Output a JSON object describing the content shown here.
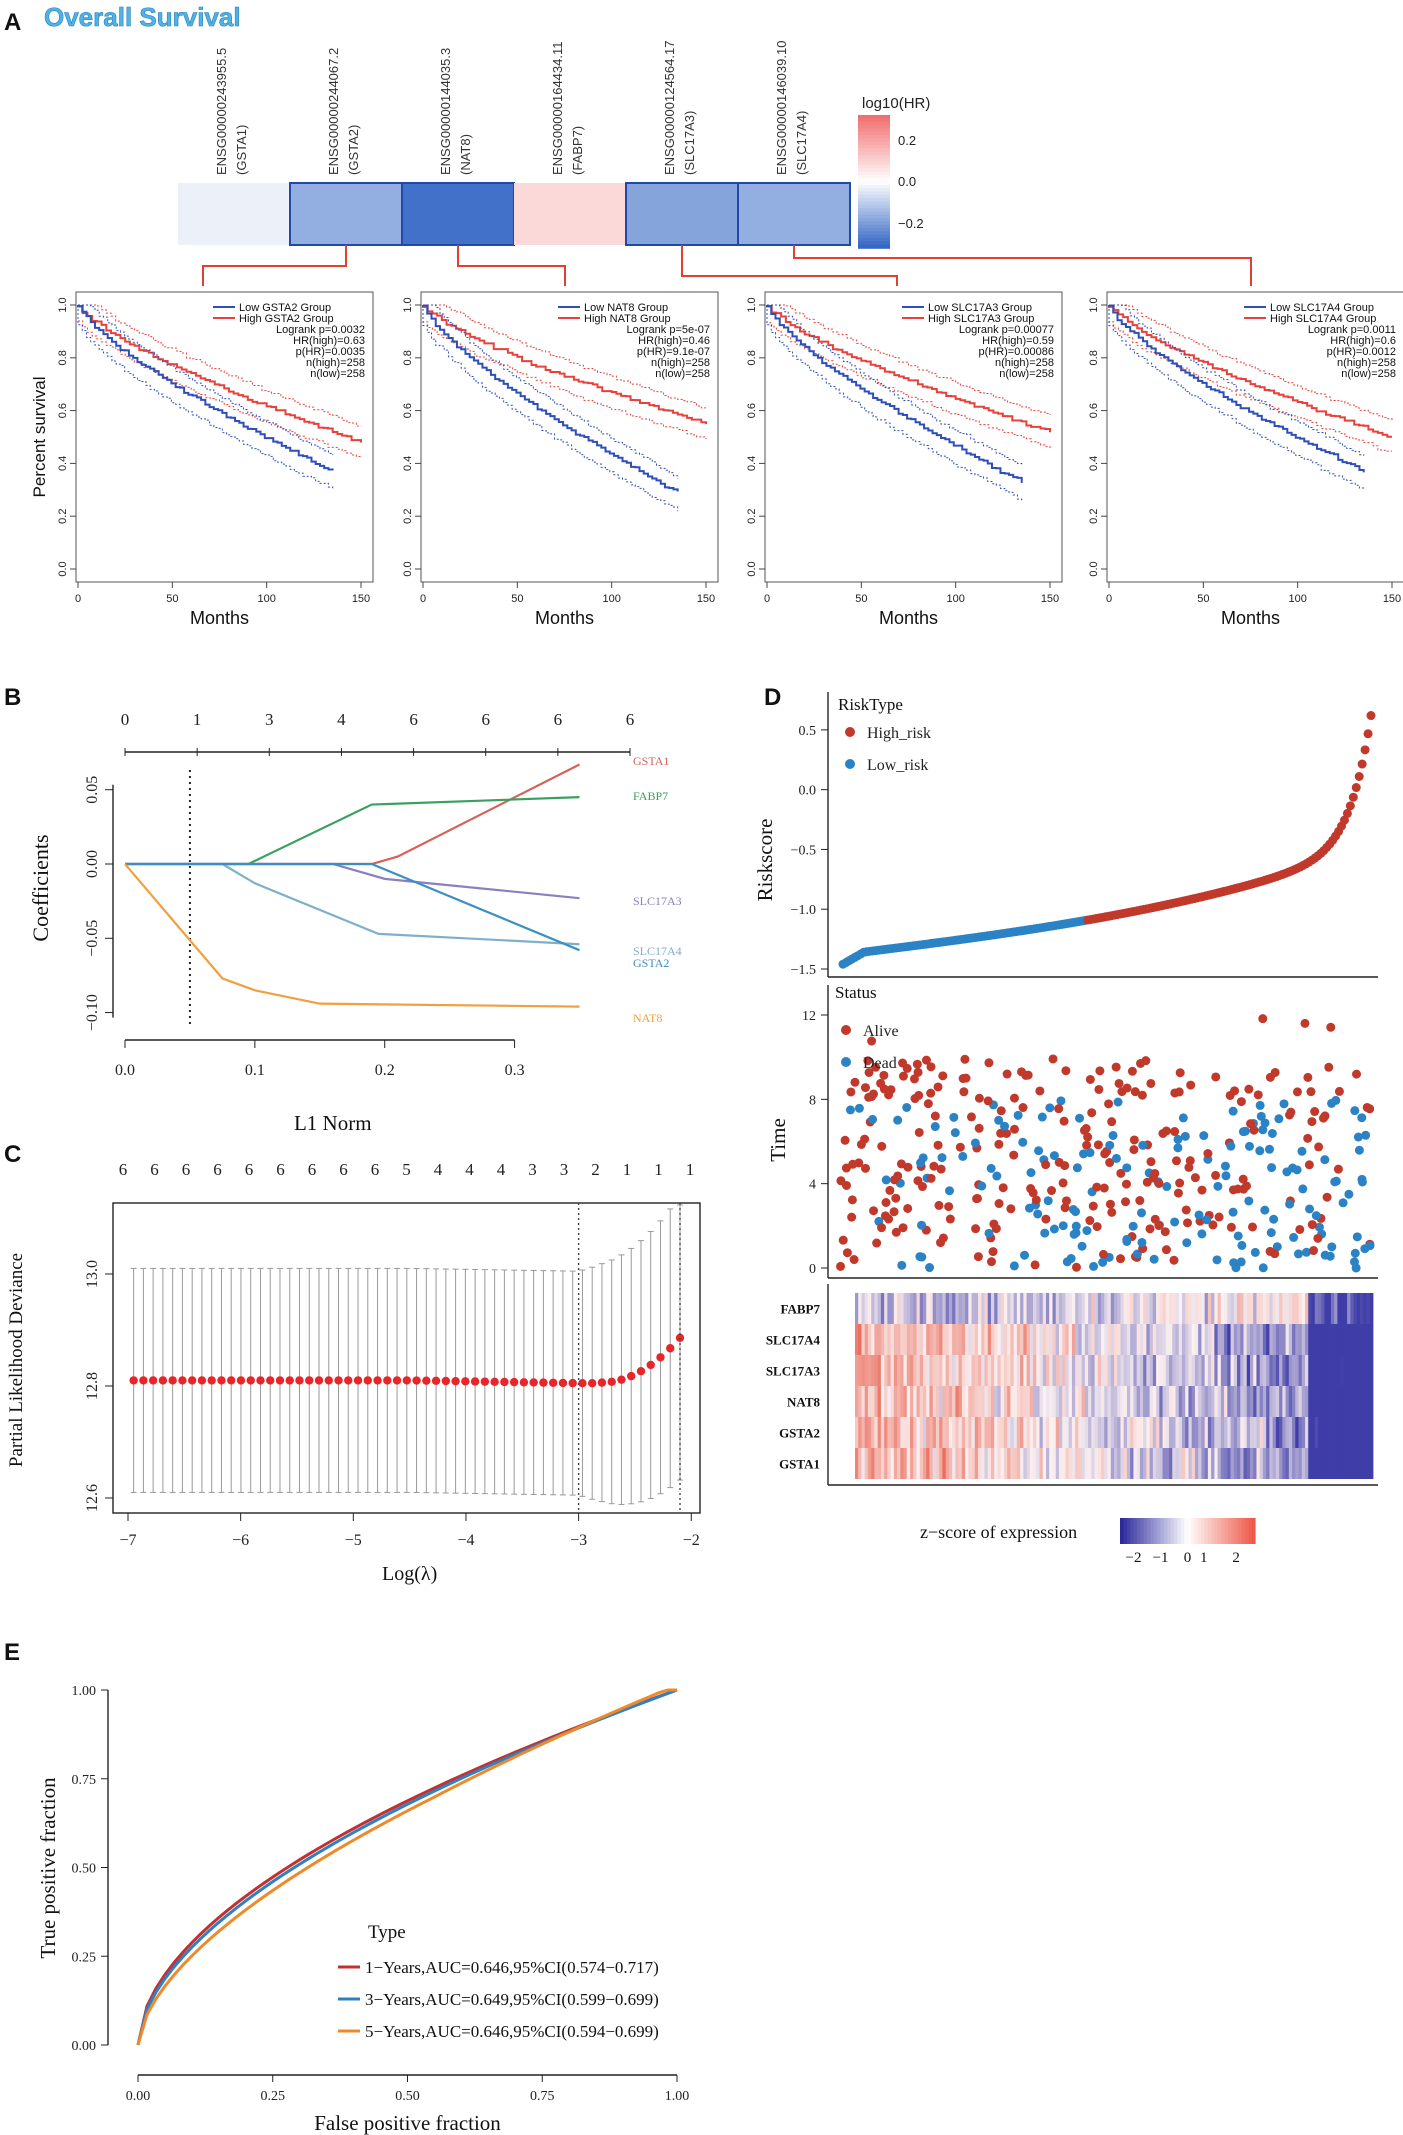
{
  "panel_labels": {
    "a": "A",
    "b": "B",
    "c": "C",
    "d": "D",
    "e": "E"
  },
  "colors": {
    "red": "#e8413c",
    "blue": "#2e4fb8",
    "hr_high": "#f06f70",
    "hr_low": "#3567c5",
    "high_risk": "#c0392b",
    "low_risk": "#2b83c6",
    "roc1": "#c43030",
    "roc3": "#2f7fc1",
    "roc5": "#ee8a2a",
    "gsta1": "#d4625a",
    "fabp7": "#39a060",
    "slc17a3": "#8a80be",
    "slc17a4": "#3b8fc3",
    "gsta2": "#3b8fc3",
    "nat8": "#f0a040"
  },
  "chart_data": [
    {
      "id": "A-heatmap",
      "type": "heatmap",
      "title": "Overall Survival",
      "genes": [
        "ENSG00000243955.5\n(GSTA1)",
        "ENSG00000244067.2\n(GSTA2)",
        "ENSG00000144035.3\n(NAT8)",
        "ENSG00000164434.11\n(FABP7)",
        "ENSG00000124564.17\n(SLC17A3)",
        "ENSG00000146039.10\n(SLC17A4)"
      ],
      "values": [
        -0.03,
        -0.16,
        -0.28,
        0.08,
        -0.18,
        -0.16
      ],
      "legend_title": "log10(HR)",
      "legend_ticks": [
        0.2,
        0.0,
        -0.2
      ]
    },
    {
      "id": "A-km",
      "type": "line",
      "ylabel": "Percent survival",
      "xlabel": "Months",
      "xticks": [
        0,
        50,
        100,
        150
      ],
      "yticks": [
        0.0,
        0.2,
        0.4,
        0.6,
        0.8,
        1.0
      ],
      "panels": [
        {
          "gene": "GSTA2",
          "stats": [
            "Low GSTA2 Group",
            "High GSTA2 Group",
            "Logrank p=0.0032",
            "HR(high)=0.63",
            "p(HR)=0.0035",
            "n(high)=258",
            "n(low)=258"
          ],
          "high_end": 0.48,
          "low_end": 0.37,
          "high_x": 150,
          "low_x": 135
        },
        {
          "gene": "NAT8",
          "stats": [
            "Low NAT8 Group",
            "High NAT8 Group",
            "Logrank p=5e-07",
            "HR(high)=0.46",
            "p(HR)=9.1e-07",
            "n(high)=258",
            "n(low)=258"
          ],
          "high_end": 0.55,
          "low_end": 0.29,
          "high_x": 150,
          "low_x": 135
        },
        {
          "gene": "SLC17A3",
          "stats": [
            "Low SLC17A3 Group",
            "High SLC17A3 Group",
            "Logrank p=0.00077",
            "HR(high)=0.59",
            "p(HR)=0.00086",
            "n(high)=258",
            "n(low)=258"
          ],
          "high_end": 0.52,
          "low_end": 0.33,
          "high_x": 150,
          "low_x": 135
        },
        {
          "gene": "SLC17A4",
          "stats": [
            "Low SLC17A4 Group",
            "High SLC17A4 Group",
            "Logrank p=0.0011",
            "HR(high)=0.6",
            "p(HR)=0.0012",
            "n(high)=258",
            "n(low)=258"
          ],
          "high_end": 0.5,
          "low_end": 0.37,
          "high_x": 150,
          "low_x": 135
        }
      ]
    },
    {
      "id": "B",
      "type": "line",
      "xlabel": "L1 Norm",
      "ylabel": "Coefficients",
      "xticks": [
        0.0,
        0.1,
        0.2,
        0.3
      ],
      "yticks": [
        0.05,
        0.0,
        -0.05,
        -0.1
      ],
      "ytick_labels": [
        "0.05",
        "0.00",
        "−0.05",
        "−0.10"
      ],
      "top_ticks": [
        "0",
        "1",
        "3",
        "4",
        "6",
        "6",
        "6",
        "6"
      ],
      "vline_x": 0.05,
      "series": [
        {
          "name": "GSTA1",
          "points": [
            [
              0,
              0
            ],
            [
              0.19,
              0
            ],
            [
              0.21,
              0.005
            ],
            [
              0.35,
              0.067
            ]
          ]
        },
        {
          "name": "FABP7",
          "points": [
            [
              0,
              0
            ],
            [
              0.095,
              0
            ],
            [
              0.19,
              0.04
            ],
            [
              0.35,
              0.045
            ]
          ]
        },
        {
          "name": "SLC17A3",
          "points": [
            [
              0,
              0
            ],
            [
              0.16,
              0
            ],
            [
              0.2,
              -0.01
            ],
            [
              0.35,
              -0.023
            ]
          ]
        },
        {
          "name": "SLC17A4",
          "points": [
            [
              0,
              0
            ],
            [
              0.075,
              0
            ],
            [
              0.1,
              -0.013
            ],
            [
              0.195,
              -0.047
            ],
            [
              0.35,
              -0.054
            ]
          ]
        },
        {
          "name": "GSTA2",
          "points": [
            [
              0,
              0
            ],
            [
              0.19,
              0
            ],
            [
              0.35,
              -0.058
            ]
          ]
        },
        {
          "name": "NAT8",
          "points": [
            [
              0,
              0
            ],
            [
              0.075,
              -0.077
            ],
            [
              0.1,
              -0.085
            ],
            [
              0.15,
              -0.094
            ],
            [
              0.35,
              -0.096
            ]
          ]
        }
      ],
      "label_text": {
        "GSTA1": "GSTA1",
        "FABP7": "FABP7",
        "SLC17A3": "SLC17A3",
        "SLC17A4": "SLC17A4",
        "GSTA2": "GSTA2",
        "NAT8": "NAT8"
      }
    },
    {
      "id": "C",
      "type": "scatter",
      "xlabel": "Log(λ)",
      "ylabel": "Partial Likelihood Deviance",
      "xticks": [
        -7,
        -6,
        -5,
        -4,
        -3,
        -2
      ],
      "xtick_labels": [
        "−7",
        "−6",
        "−5",
        "−4",
        "−3",
        "−2"
      ],
      "yticks": [
        12.6,
        12.8,
        13.0
      ],
      "ytick_labels": [
        "12.6",
        "12.8",
        "13.0"
      ],
      "top_ticks": [
        "6",
        "6",
        "6",
        "6",
        "6",
        "6",
        "6",
        "6",
        "6",
        "5",
        "4",
        "4",
        "4",
        "3",
        "3",
        "2",
        "1",
        "1",
        "1"
      ],
      "vlines": [
        -3.0,
        -2.1
      ]
    },
    {
      "id": "D",
      "type": "scatter",
      "risk": {
        "ylabel": "Riskscore",
        "yticks": [
          "0.5",
          "0.0",
          "−0.5",
          "−1.0",
          "−1.5"
        ],
        "legend_title": "RiskType",
        "legend": [
          "High_risk",
          "Low_risk"
        ]
      },
      "status": {
        "ylabel": "Time",
        "yticks": [
          "12",
          "8",
          "4",
          "0"
        ],
        "legend_title": "Status",
        "legend": [
          "Alive",
          "Dead"
        ]
      },
      "heatmap": {
        "genes": [
          "FABP7",
          "SLC17A4",
          "SLC17A3",
          "NAT8",
          "GSTA2",
          "GSTA1"
        ],
        "legend_title": "z−score of expression",
        "legend_ticks": [
          "−2",
          "−1",
          "0",
          "1",
          "2"
        ]
      }
    },
    {
      "id": "E",
      "type": "line",
      "xlabel": "False positive fraction",
      "ylabel": "True positive fraction",
      "xticks": [
        "0.00",
        "0.25",
        "0.50",
        "0.75",
        "1.00"
      ],
      "yticks": [
        "0.00",
        "0.25",
        "0.50",
        "0.75",
        "1.00"
      ],
      "legend_title": "Type",
      "series": [
        {
          "name": "1−Years,AUC=0.646,95%CI(0.574−0.717)",
          "auc": 0.646
        },
        {
          "name": "3−Years,AUC=0.649,95%CI(0.599−0.699)",
          "auc": 0.649
        },
        {
          "name": "5−Years,AUC=0.646,95%CI(0.594−0.699)",
          "auc": 0.646
        }
      ]
    }
  ]
}
